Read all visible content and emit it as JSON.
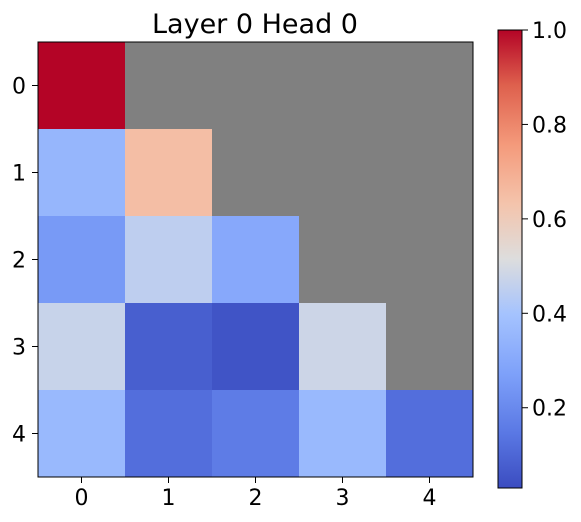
{
  "chart_data": {
    "type": "heatmap",
    "title": "Layer 0 Head 0",
    "xlabel": "",
    "ylabel": "",
    "x_ticks": [
      "0",
      "1",
      "2",
      "3",
      "4"
    ],
    "y_ticks": [
      "0",
      "1",
      "2",
      "3",
      "4"
    ],
    "values": [
      [
        1.0,
        null,
        null,
        null,
        null
      ],
      [
        0.35,
        0.65,
        null,
        null,
        null
      ],
      [
        0.25,
        0.45,
        0.3,
        null,
        null
      ],
      [
        0.47,
        0.08,
        0.05,
        0.48,
        null
      ],
      [
        0.36,
        0.12,
        0.16,
        0.36,
        0.12
      ]
    ],
    "masked_color": "#808080",
    "colormap": "coolwarm",
    "colormap_stops": [
      "#3b4cc0",
      "#dddddd",
      "#b40426"
    ],
    "colorbar": {
      "range": [
        0.03,
        1.0
      ],
      "ticks": [
        "0.2",
        "0.4",
        "0.6",
        "0.8",
        "1.0"
      ],
      "tick_values": [
        0.2,
        0.4,
        0.6,
        0.8,
        1.0
      ],
      "placement": "right"
    },
    "grid": false
  }
}
